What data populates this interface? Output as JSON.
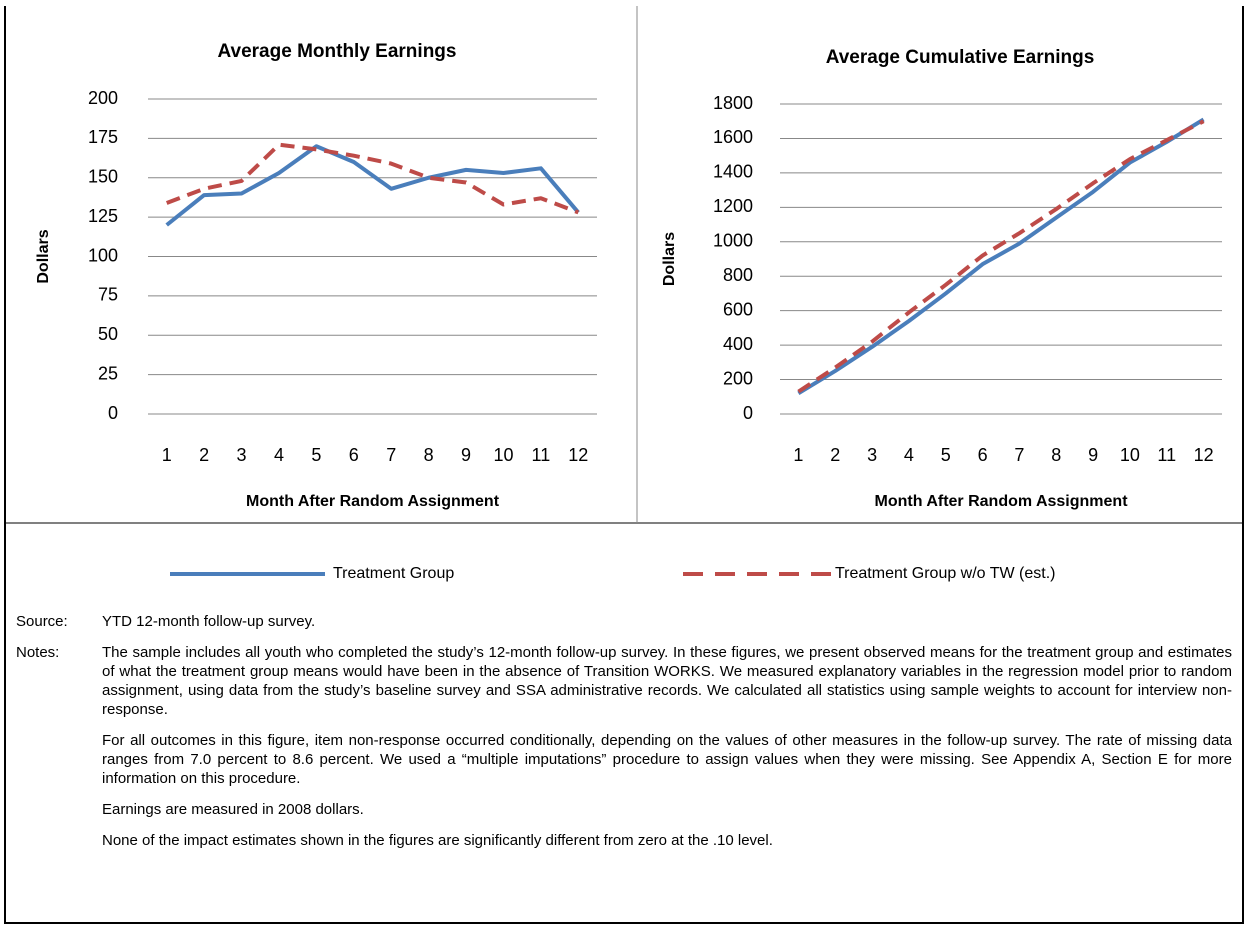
{
  "chart_data": [
    {
      "type": "line",
      "title": "Average Monthly Earnings",
      "x_label": "Month After Random Assignment",
      "y_label": "Dollars",
      "categories": [
        "1",
        "2",
        "3",
        "4",
        "5",
        "6",
        "7",
        "8",
        "9",
        "10",
        "11",
        "12"
      ],
      "ylim": [
        0,
        200
      ],
      "yticks": [
        0,
        25,
        50,
        75,
        100,
        125,
        150,
        175,
        200
      ],
      "grid": true,
      "series": [
        {
          "name": "Treatment Group",
          "color": "#4a7ebb",
          "dash": false,
          "values": [
            120,
            139,
            140,
            153,
            170,
            160,
            143,
            150,
            155,
            153,
            156,
            128
          ]
        },
        {
          "name": "Treatment Group w/o TW (est.)",
          "color": "#be4b48",
          "dash": true,
          "values": [
            134,
            143,
            148,
            171,
            168,
            164,
            159,
            150,
            147,
            133,
            137,
            128
          ]
        }
      ]
    },
    {
      "type": "line",
      "title": "Average Cumulative Earnings",
      "x_label": "Month After Random Assignment",
      "y_label": "Dollars",
      "categories": [
        "1",
        "2",
        "3",
        "4",
        "5",
        "6",
        "7",
        "8",
        "9",
        "10",
        "11",
        "12"
      ],
      "ylim": [
        0,
        1800
      ],
      "yticks": [
        0,
        200,
        400,
        600,
        800,
        1000,
        1200,
        1400,
        1600,
        1800
      ],
      "grid": true,
      "series": [
        {
          "name": "Treatment Group",
          "color": "#4a7ebb",
          "dash": false,
          "values": [
            120,
            250,
            390,
            540,
            700,
            870,
            990,
            1140,
            1290,
            1460,
            1580,
            1710
          ]
        },
        {
          "name": "Treatment Group w/o TW (est.)",
          "color": "#be4b48",
          "dash": true,
          "values": [
            130,
            270,
            420,
            590,
            750,
            920,
            1050,
            1190,
            1340,
            1480,
            1590,
            1700
          ]
        }
      ]
    }
  ],
  "notes": {
    "source_label": "Source:",
    "source": "YTD 12-month follow-up survey.",
    "notes_label": "Notes:",
    "paragraphs": [
      "The sample includes all youth who completed the study’s 12-month follow-up survey. In these figures, we present observed means for the treatment group and estimates of what the treatment group means would have been in the absence of Transition WORKS. We measured explanatory variables in the regression model prior to random assignment, using data from the study’s baseline survey and SSA administrative records. We calculated all statistics using sample weights to account for interview non-response.",
      "For all outcomes in this figure, item non-response occurred conditionally, depending on the values of other measures in the follow-up survey. The rate of missing data ranges from 7.0 percent to 8.6 percent. We used a “multiple imputations” procedure to assign values when they were missing. See Appendix A, Section E for more information on this procedure.",
      "Earnings are measured in 2008 dollars.",
      "None of the impact estimates shown in the figures are significantly different from zero at the .10 level."
    ]
  }
}
